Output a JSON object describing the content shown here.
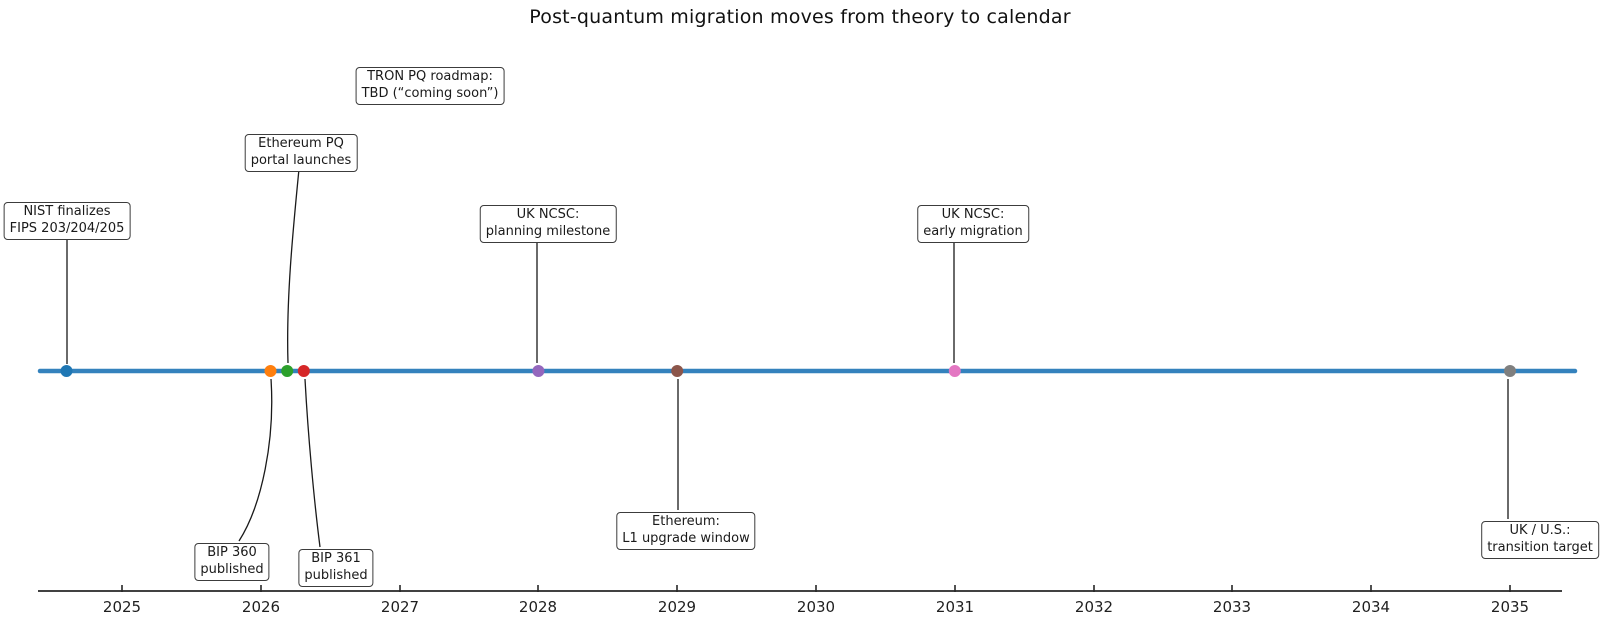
{
  "title": "Post-quantum migration moves from theory to calendar",
  "chart_data": {
    "type": "timeline",
    "title": "Post-quantum migration moves from theory to calendar",
    "x_axis": {
      "ticks": [
        "2025",
        "2026",
        "2027",
        "2028",
        "2029",
        "2030",
        "2031",
        "2032",
        "2033",
        "2034",
        "2035"
      ],
      "range": [
        2024.4,
        2035.4
      ],
      "grid": false
    },
    "timeline_color": "#3482bd",
    "axis_color": "#262626",
    "leader_color": "#1a1a1a",
    "events": [
      {
        "id": "nist",
        "label_line1": "NIST finalizes",
        "label_line2": "FIPS 203/204/205",
        "year": 2024.6,
        "color": "#1f77b4",
        "label_side": "above"
      },
      {
        "id": "bip360",
        "label_line1": "BIP 360",
        "label_line2": "published",
        "year": 2026.07,
        "color": "#ff7f0e",
        "label_side": "below"
      },
      {
        "id": "eth-portal",
        "label_line1": "Ethereum PQ",
        "label_line2": "portal launches",
        "year": 2026.19,
        "color": "#2ca02c",
        "label_side": "above"
      },
      {
        "id": "bip361",
        "label_line1": "BIP 361",
        "label_line2": "published",
        "year": 2026.31,
        "color": "#d62728",
        "label_side": "below"
      },
      {
        "id": "tron",
        "label_line1": "TRON PQ roadmap:",
        "label_line2": "TBD (“coming soon”)",
        "year": null,
        "color": null,
        "label_side": "floating"
      },
      {
        "id": "ncsc-planning",
        "label_line1": "UK NCSC:",
        "label_line2": "planning milestone",
        "year": 2028,
        "color": "#9467bd",
        "label_side": "above"
      },
      {
        "id": "eth-l1",
        "label_line1": "Ethereum:",
        "label_line2": "L1 upgrade window",
        "year": 2029,
        "color": "#8c564b",
        "label_side": "below"
      },
      {
        "id": "ncsc-early",
        "label_line1": "UK NCSC:",
        "label_line2": "early migration",
        "year": 2031,
        "color": "#e377c2",
        "label_side": "above"
      },
      {
        "id": "ukus",
        "label_line1": "UK / U.S.:",
        "label_line2": "transition target",
        "year": 2035,
        "color": "#7f7f7f",
        "label_side": "below"
      }
    ]
  }
}
